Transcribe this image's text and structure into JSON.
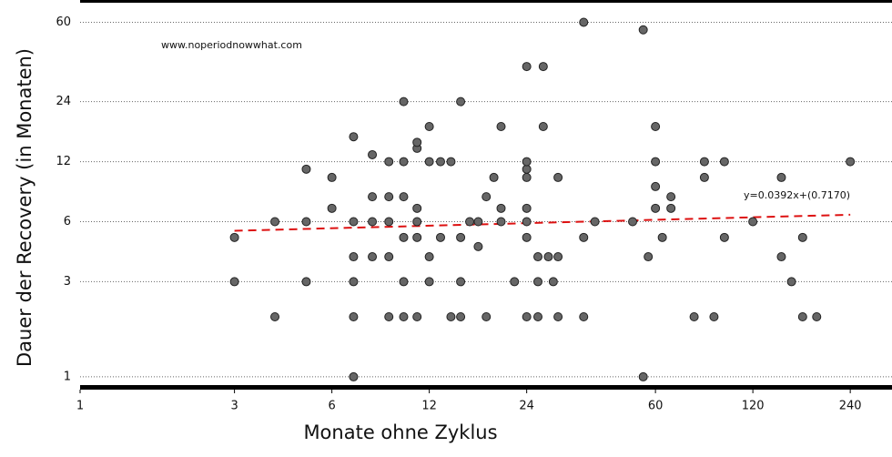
{
  "chart_data": {
    "type": "scatter",
    "x_label": "Monate ohne Zyklus",
    "y_label": "Dauer der Recovery (in Monaten)",
    "annotations": [
      "www.noperiodnowwhat.com",
      "y=0.0392x+(0.7170)"
    ],
    "x_scale": "log",
    "y_scale": "log",
    "xlim": [
      1,
      323
    ],
    "ylim": [
      0.89,
      76
    ],
    "xticks": [
      1,
      3,
      6,
      12,
      24,
      60,
      120,
      240
    ],
    "yticks": [
      1,
      3,
      6,
      12,
      24,
      60
    ],
    "grid": true,
    "color": "#666666",
    "x": [
      7,
      55,
      4,
      7,
      9,
      10,
      11,
      14,
      15,
      18,
      24,
      26,
      30,
      36,
      79,
      91,
      171,
      189,
      3,
      5,
      7,
      10,
      12,
      15,
      22,
      26,
      29,
      158,
      7,
      8,
      9,
      12,
      26,
      28,
      30,
      57,
      147,
      17,
      3,
      10,
      11,
      13,
      15,
      24,
      36,
      63,
      98,
      171,
      4,
      5,
      7,
      8,
      9,
      11,
      16,
      17,
      20,
      24,
      39,
      51,
      120,
      6,
      11,
      20,
      24,
      60,
      67,
      8,
      9,
      10,
      18,
      67,
      60,
      6,
      19,
      24,
      30,
      85,
      147,
      5,
      24,
      9,
      10,
      12,
      13,
      14,
      24,
      60,
      85,
      98,
      240,
      8,
      11,
      11,
      7,
      12,
      20,
      27,
      60,
      10,
      15,
      24,
      27,
      55,
      36
    ],
    "y": [
      1,
      1,
      2,
      2,
      2,
      2,
      2,
      2,
      2,
      2,
      2,
      2,
      2,
      2,
      2,
      2,
      2,
      2,
      3,
      3,
      3,
      3,
      3,
      3,
      3,
      3,
      3,
      3,
      4,
      4,
      4,
      4,
      4,
      4,
      4,
      4,
      4,
      4.5,
      5,
      5,
      5,
      5,
      5,
      5,
      5,
      5,
      5,
      5,
      6,
      6,
      6,
      6,
      6,
      6,
      6,
      6,
      6,
      6,
      6,
      6,
      6,
      7,
      7,
      7,
      7,
      7,
      7,
      8,
      8,
      8,
      8,
      8,
      9,
      10,
      10,
      10,
      10,
      10,
      10,
      11,
      11,
      12,
      12,
      12,
      12,
      12,
      12,
      12,
      12,
      12,
      12,
      13,
      14,
      15,
      16,
      18,
      18,
      18,
      18,
      24,
      24,
      36,
      36,
      55,
      60
    ],
    "trend": {
      "color": "#dd1111",
      "x": [
        3,
        240
      ],
      "y": [
        5.4,
        6.5
      ]
    }
  }
}
